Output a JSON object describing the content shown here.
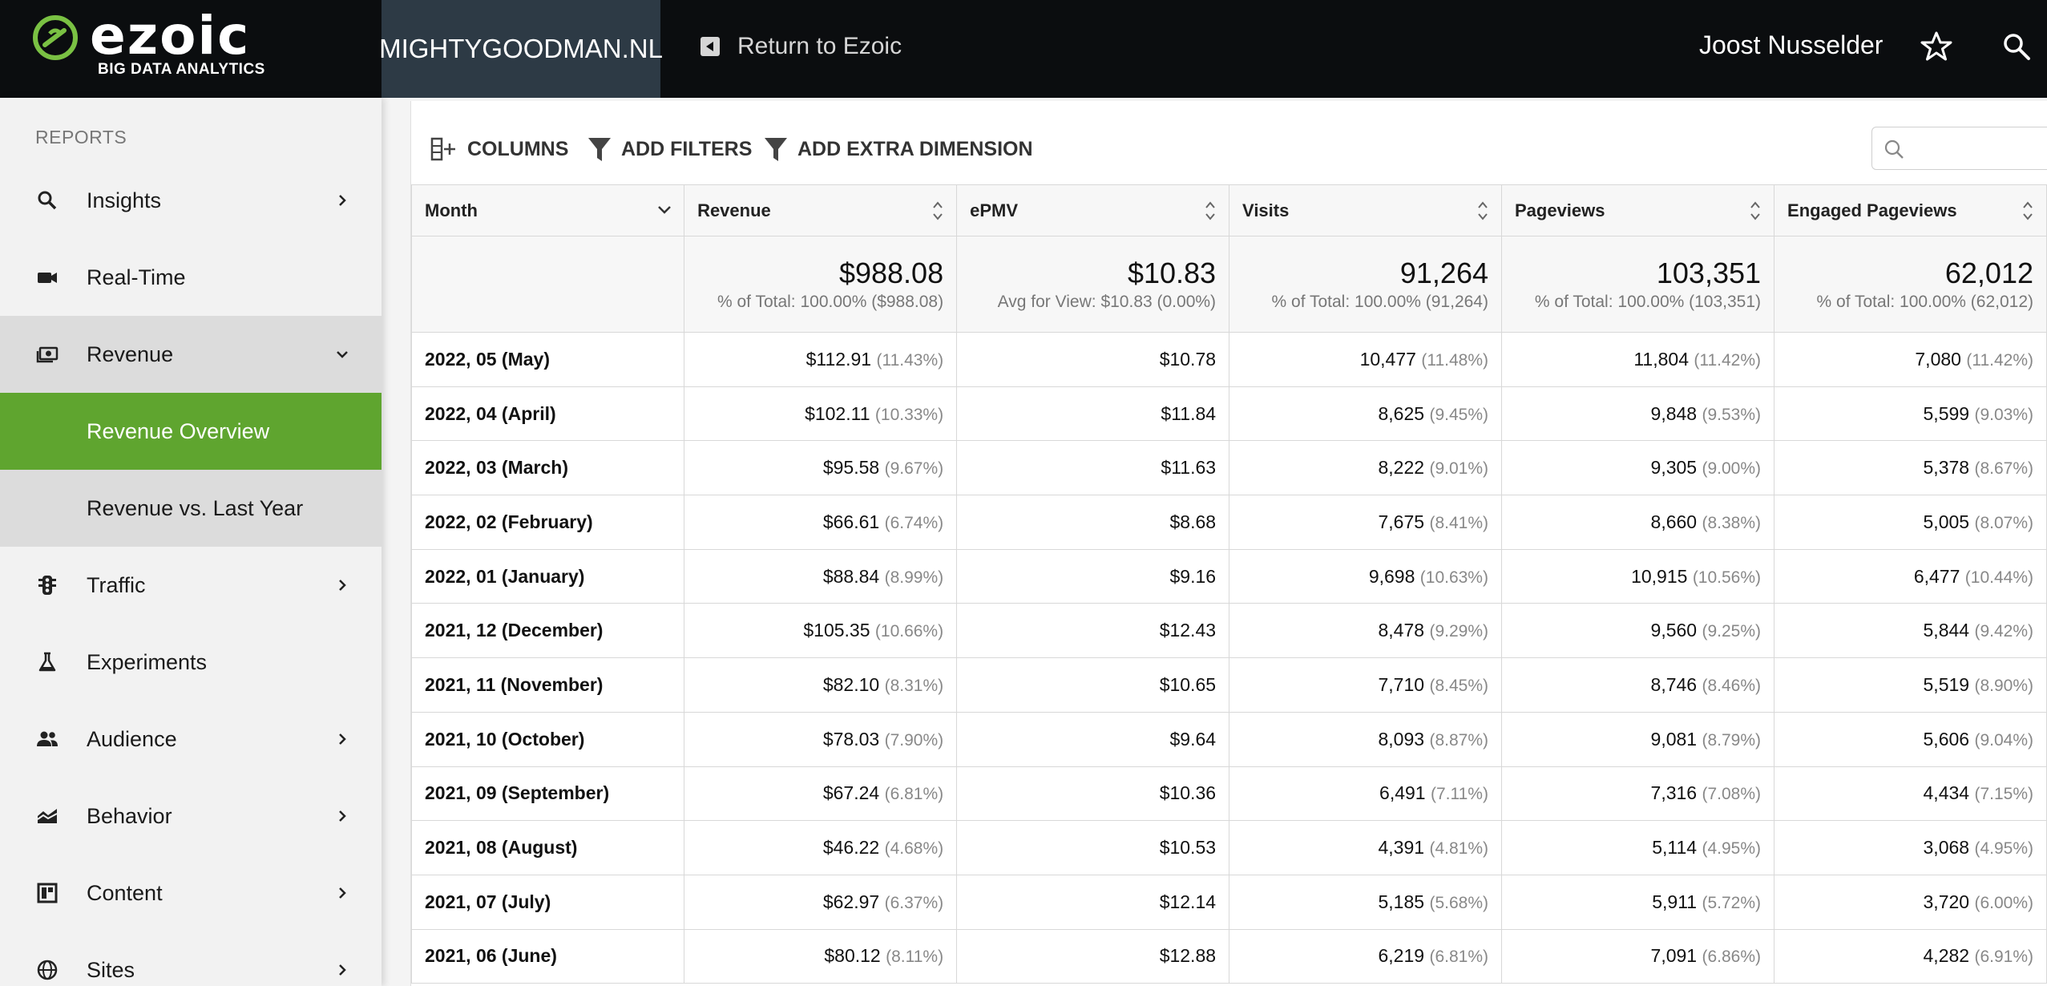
{
  "header": {
    "logo_word": "ezoic",
    "logo_sub": "BIG DATA ANALYTICS",
    "site": "MIGHTYGOODMAN.NL",
    "return_label": "Return to Ezoic",
    "user": "Joost Nusselder",
    "icons": [
      "star-icon",
      "search-icon"
    ]
  },
  "sidebar": {
    "section_label": "REPORTS",
    "items": [
      {
        "label": "Insights",
        "icon": "search-icon",
        "chevron": "right"
      },
      {
        "label": "Real-Time",
        "icon": "video-camera-icon",
        "chevron": ""
      },
      {
        "label": "Revenue",
        "icon": "money-icon",
        "chevron": "down"
      },
      {
        "label": "Revenue Overview",
        "icon": "",
        "chevron": ""
      },
      {
        "label": "Revenue vs. Last Year",
        "icon": "",
        "chevron": ""
      },
      {
        "label": "Traffic",
        "icon": "traffic-light-icon",
        "chevron": "right"
      },
      {
        "label": "Experiments",
        "icon": "flask-icon",
        "chevron": ""
      },
      {
        "label": "Audience",
        "icon": "people-icon",
        "chevron": "right"
      },
      {
        "label": "Behavior",
        "icon": "area-chart-icon",
        "chevron": "right"
      },
      {
        "label": "Content",
        "icon": "layout-icon",
        "chevron": "right"
      },
      {
        "label": "Sites",
        "icon": "globe-icon",
        "chevron": "right"
      }
    ],
    "active_item": "Revenue Overview"
  },
  "toolbar": {
    "columns_label": "COLUMNS",
    "filters_label": "ADD FILTERS",
    "dimension_label": "ADD EXTRA DIMENSION",
    "search_placeholder": ""
  },
  "table": {
    "headers": [
      "Month",
      "Revenue",
      "ePMV",
      "Visits",
      "Pageviews",
      "Engaged Pageviews"
    ],
    "totals": [
      {
        "value": "$988.08",
        "sub": "% of Total: 100.00% ($988.08)"
      },
      {
        "value": "$10.83",
        "sub": "Avg for View: $10.83 (0.00%)"
      },
      {
        "value": "91,264",
        "sub": "% of Total: 100.00% (91,264)"
      },
      {
        "value": "103,351",
        "sub": "% of Total: 100.00% (103,351)"
      },
      {
        "value": "62,012",
        "sub": "% of Total: 100.00% (62,012)"
      }
    ],
    "rows": [
      {
        "month": "2022, 05 (May)",
        "revenue": "$112.91",
        "revenue_pct": "(11.43%)",
        "epmv": "$10.78",
        "visits": "10,477",
        "visits_pct": "(11.48%)",
        "pageviews": "11,804",
        "pageviews_pct": "(11.42%)",
        "engaged": "7,080",
        "engaged_pct": "(11.42%)"
      },
      {
        "month": "2022, 04 (April)",
        "revenue": "$102.11",
        "revenue_pct": "(10.33%)",
        "epmv": "$11.84",
        "visits": "8,625",
        "visits_pct": "(9.45%)",
        "pageviews": "9,848",
        "pageviews_pct": "(9.53%)",
        "engaged": "5,599",
        "engaged_pct": "(9.03%)"
      },
      {
        "month": "2022, 03 (March)",
        "revenue": "$95.58",
        "revenue_pct": "(9.67%)",
        "epmv": "$11.63",
        "visits": "8,222",
        "visits_pct": "(9.01%)",
        "pageviews": "9,305",
        "pageviews_pct": "(9.00%)",
        "engaged": "5,378",
        "engaged_pct": "(8.67%)"
      },
      {
        "month": "2022, 02 (February)",
        "revenue": "$66.61",
        "revenue_pct": "(6.74%)",
        "epmv": "$8.68",
        "visits": "7,675",
        "visits_pct": "(8.41%)",
        "pageviews": "8,660",
        "pageviews_pct": "(8.38%)",
        "engaged": "5,005",
        "engaged_pct": "(8.07%)"
      },
      {
        "month": "2022, 01 (January)",
        "revenue": "$88.84",
        "revenue_pct": "(8.99%)",
        "epmv": "$9.16",
        "visits": "9,698",
        "visits_pct": "(10.63%)",
        "pageviews": "10,915",
        "pageviews_pct": "(10.56%)",
        "engaged": "6,477",
        "engaged_pct": "(10.44%)"
      },
      {
        "month": "2021, 12 (December)",
        "revenue": "$105.35",
        "revenue_pct": "(10.66%)",
        "epmv": "$12.43",
        "visits": "8,478",
        "visits_pct": "(9.29%)",
        "pageviews": "9,560",
        "pageviews_pct": "(9.25%)",
        "engaged": "5,844",
        "engaged_pct": "(9.42%)"
      },
      {
        "month": "2021, 11 (November)",
        "revenue": "$82.10",
        "revenue_pct": "(8.31%)",
        "epmv": "$10.65",
        "visits": "7,710",
        "visits_pct": "(8.45%)",
        "pageviews": "8,746",
        "pageviews_pct": "(8.46%)",
        "engaged": "5,519",
        "engaged_pct": "(8.90%)"
      },
      {
        "month": "2021, 10 (October)",
        "revenue": "$78.03",
        "revenue_pct": "(7.90%)",
        "epmv": "$9.64",
        "visits": "8,093",
        "visits_pct": "(8.87%)",
        "pageviews": "9,081",
        "pageviews_pct": "(8.79%)",
        "engaged": "5,606",
        "engaged_pct": "(9.04%)"
      },
      {
        "month": "2021, 09 (September)",
        "revenue": "$67.24",
        "revenue_pct": "(6.81%)",
        "epmv": "$10.36",
        "visits": "6,491",
        "visits_pct": "(7.11%)",
        "pageviews": "7,316",
        "pageviews_pct": "(7.08%)",
        "engaged": "4,434",
        "engaged_pct": "(7.15%)"
      },
      {
        "month": "2021, 08 (August)",
        "revenue": "$46.22",
        "revenue_pct": "(4.68%)",
        "epmv": "$10.53",
        "visits": "4,391",
        "visits_pct": "(4.81%)",
        "pageviews": "5,114",
        "pageviews_pct": "(4.95%)",
        "engaged": "3,068",
        "engaged_pct": "(4.95%)"
      },
      {
        "month": "2021, 07 (July)",
        "revenue": "$62.97",
        "revenue_pct": "(6.37%)",
        "epmv": "$12.14",
        "visits": "5,185",
        "visits_pct": "(5.68%)",
        "pageviews": "5,911",
        "pageviews_pct": "(5.72%)",
        "engaged": "3,720",
        "engaged_pct": "(6.00%)"
      },
      {
        "month": "2021, 06 (June)",
        "revenue": "$80.12",
        "revenue_pct": "(8.11%)",
        "epmv": "$12.88",
        "visits": "6,219",
        "visits_pct": "(6.81%)",
        "pageviews": "7,091",
        "pageviews_pct": "(6.86%)",
        "engaged": "4,282",
        "engaged_pct": "(6.91%)"
      }
    ]
  },
  "colors": {
    "topbar": "#0b0d0f",
    "site_tab": "#2d3a45",
    "accent_green": "#5fa52f",
    "logo_green": "#7ac143"
  }
}
